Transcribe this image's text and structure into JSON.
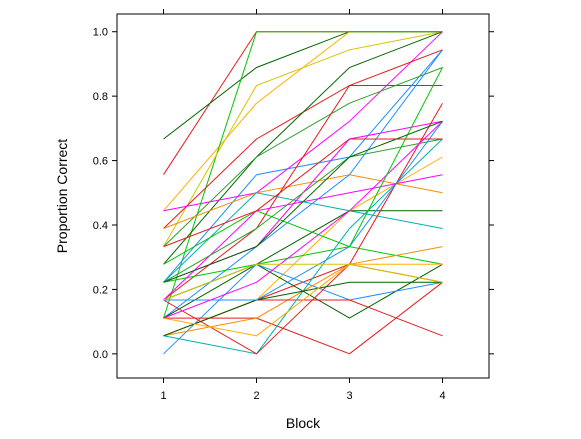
{
  "chart_data": {
    "type": "line",
    "title": "",
    "xlabel": "Block",
    "ylabel": "Proportion Correct",
    "x": [
      1,
      2,
      3,
      4
    ],
    "xticks": [
      "1",
      "2",
      "3",
      "4"
    ],
    "yticks": [
      "0.0",
      "0.2",
      "0.4",
      "0.6",
      "0.8",
      "1.0"
    ],
    "xlim": [
      0.5,
      4.5
    ],
    "ylim": [
      -0.075,
      1.055
    ],
    "grid": false,
    "legend": "none",
    "series": [
      {
        "color": "#e41a1c",
        "values": [
          0.556,
          1.0,
          1.0,
          1.0
        ]
      },
      {
        "color": "#006400",
        "values": [
          0.667,
          0.889,
          1.0,
          1.0
        ]
      },
      {
        "color": "#ffb000",
        "values": [
          0.444,
          0.778,
          1.0,
          1.0
        ]
      },
      {
        "color": "#00c800",
        "values": [
          0.111,
          1.0,
          1.0,
          1.0
        ]
      },
      {
        "color": "#d4c400",
        "values": [
          0.333,
          0.833,
          0.944,
          1.0
        ]
      },
      {
        "color": "#e41a1c",
        "values": [
          0.389,
          0.667,
          0.833,
          0.833
        ]
      },
      {
        "color": "#006400",
        "values": [
          0.278,
          0.611,
          0.889,
          1.0
        ]
      },
      {
        "color": "#1f8fff",
        "values": [
          0.222,
          0.556,
          0.611,
          0.944
        ]
      },
      {
        "color": "#ff00ff",
        "values": [
          0.444,
          0.5,
          0.722,
          1.0
        ]
      },
      {
        "color": "#2ca02c",
        "values": [
          0.333,
          0.611,
          0.778,
          0.889
        ]
      },
      {
        "color": "#ff8c00",
        "values": [
          0.389,
          0.5,
          0.556,
          0.5
        ]
      },
      {
        "color": "#00b0b0",
        "values": [
          0.222,
          0.5,
          0.444,
          0.389
        ]
      },
      {
        "color": "#e41a1c",
        "values": [
          0.167,
          0.389,
          0.833,
          0.944
        ]
      },
      {
        "color": "#006400",
        "values": [
          0.167,
          0.278,
          0.444,
          0.444
        ]
      },
      {
        "color": "#ff00ff",
        "values": [
          0.222,
          0.333,
          0.667,
          0.722
        ]
      },
      {
        "color": "#1f8fff",
        "values": [
          0.111,
          0.333,
          0.556,
          0.944
        ]
      },
      {
        "color": "#ffb000",
        "values": [
          0.056,
          0.167,
          0.444,
          0.611
        ]
      },
      {
        "color": "#e41a1c",
        "values": [
          0.167,
          0.167,
          0.278,
          0.222
        ]
      },
      {
        "color": "#00c800",
        "values": [
          0.222,
          0.278,
          0.333,
          0.278
        ]
      },
      {
        "color": "#006400",
        "values": [
          0.111,
          0.278,
          0.111,
          0.278
        ]
      },
      {
        "color": "#1f8fff",
        "values": [
          0.0,
          0.278,
          0.167,
          0.222
        ]
      },
      {
        "color": "#ff00ff",
        "values": [
          0.167,
          0.444,
          0.5,
          0.556
        ]
      },
      {
        "color": "#e41a1c",
        "values": [
          0.111,
          0.111,
          0.0,
          0.222
        ]
      },
      {
        "color": "#ff8c00",
        "values": [
          0.056,
          0.111,
          0.278,
          0.333
        ]
      },
      {
        "color": "#e41a1c",
        "values": [
          0.056,
          0.167,
          0.167,
          0.056
        ]
      },
      {
        "color": "#00b0b0",
        "values": [
          0.056,
          0.0,
          0.389,
          0.667
        ]
      },
      {
        "color": "#2ca02c",
        "values": [
          0.222,
          0.389,
          0.611,
          0.667
        ]
      },
      {
        "color": "#e41a1c",
        "values": [
          0.167,
          0.0,
          0.278,
          0.778
        ]
      },
      {
        "color": "#006400",
        "values": [
          0.056,
          0.167,
          0.222,
          0.222
        ]
      },
      {
        "color": "#ffb000",
        "values": [
          0.111,
          0.056,
          0.278,
          0.278
        ]
      },
      {
        "color": "#1f8fff",
        "values": [
          0.167,
          0.167,
          0.333,
          0.722
        ]
      },
      {
        "color": "#ff00ff",
        "values": [
          0.111,
          0.222,
          0.444,
          0.722
        ]
      },
      {
        "color": "#00c800",
        "values": [
          0.278,
          0.444,
          0.333,
          0.889
        ]
      },
      {
        "color": "#e41a1c",
        "values": [
          0.333,
          0.444,
          0.667,
          0.667
        ]
      },
      {
        "color": "#006400",
        "values": [
          0.222,
          0.333,
          0.611,
          0.722
        ]
      },
      {
        "color": "#d4c400",
        "values": [
          0.167,
          0.278,
          0.278,
          0.222
        ]
      }
    ]
  }
}
